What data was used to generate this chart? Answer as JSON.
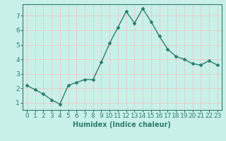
{
  "x": [
    0,
    1,
    2,
    3,
    4,
    5,
    6,
    7,
    8,
    9,
    10,
    11,
    12,
    13,
    14,
    15,
    16,
    17,
    18,
    19,
    20,
    21,
    22,
    23
  ],
  "y": [
    2.2,
    1.9,
    1.6,
    1.2,
    0.9,
    2.2,
    2.4,
    2.6,
    2.6,
    3.8,
    5.1,
    6.2,
    7.3,
    6.5,
    7.5,
    6.6,
    5.6,
    4.7,
    4.2,
    4.0,
    3.7,
    3.6,
    3.9,
    3.6
  ],
  "line_color": "#2e7d6e",
  "marker": "D",
  "marker_size": 2,
  "bg_color": "#c8f0e8",
  "plot_bg_color": "#c8f0e8",
  "grid_color": "#e8c8c8",
  "xlabel": "Humidex (Indice chaleur)",
  "xlabel_fontsize": 7,
  "tick_fontsize": 6.5,
  "ylim": [
    0.5,
    7.8
  ],
  "xlim": [
    -0.5,
    23.5
  ],
  "yticks": [
    1,
    2,
    3,
    4,
    5,
    6,
    7
  ],
  "xticks": [
    0,
    1,
    2,
    3,
    4,
    5,
    6,
    7,
    8,
    9,
    10,
    11,
    12,
    13,
    14,
    15,
    16,
    17,
    18,
    19,
    20,
    21,
    22,
    23
  ],
  "spine_color": "#2e7d6e",
  "line_width": 1.0
}
